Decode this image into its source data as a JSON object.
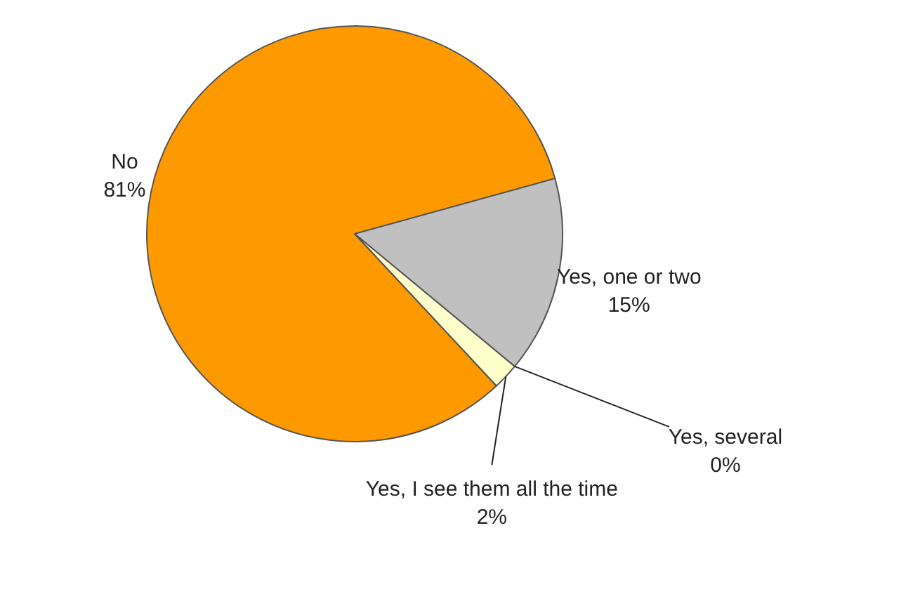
{
  "chart_data": {
    "type": "pie",
    "categories": [
      "No",
      "Yes, one or two",
      "Yes, several",
      "Yes, I see them all the time"
    ],
    "values": [
      81,
      15,
      0,
      2
    ],
    "value_labels": [
      "81%",
      "15%",
      "0%",
      "2%"
    ],
    "colors": [
      "#ff9900",
      "#c0c0c0",
      "#ffffcc",
      "#ffffcc"
    ],
    "legend": false
  }
}
